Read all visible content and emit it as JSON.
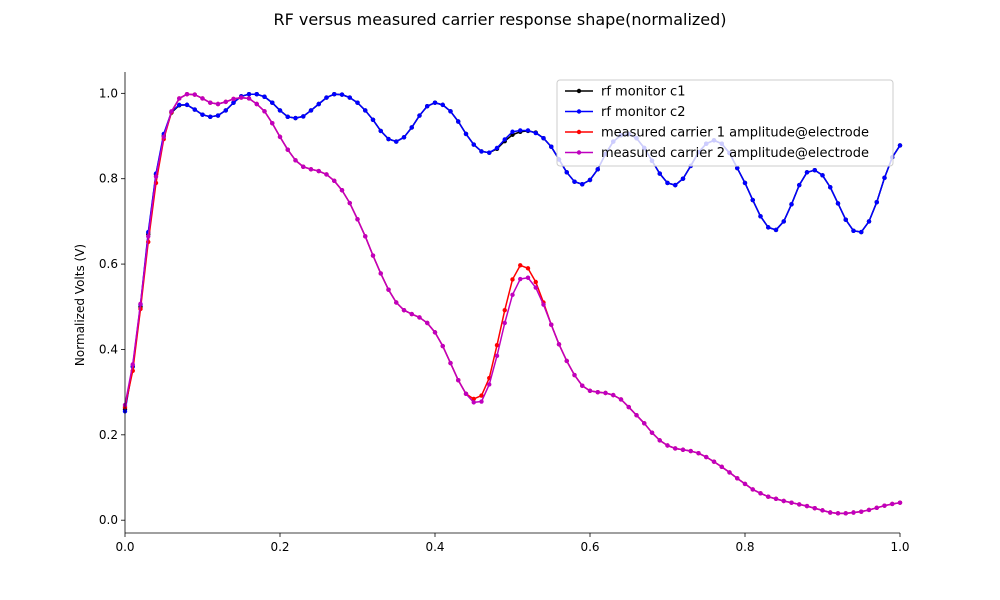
{
  "chart_data": {
    "type": "line",
    "title": "RF versus measured carrier response shape(normalized)",
    "xlabel": "",
    "ylabel": "Normalized Volts (V)",
    "xlim": [
      0,
      1
    ],
    "ylim": [
      -0.03,
      1.05
    ],
    "xticks": [
      0.0,
      0.2,
      0.4,
      0.6,
      0.8,
      1.0
    ],
    "xtick_labels": [
      "0.0",
      "0.2",
      "0.4",
      "0.6",
      "0.8",
      "1.0"
    ],
    "yticks": [
      0.0,
      0.2,
      0.4,
      0.6,
      0.8,
      1.0
    ],
    "ytick_labels": [
      "0.0",
      "0.2",
      "0.4",
      "0.6",
      "0.8",
      "1.0"
    ],
    "grid": false,
    "legend_position": "top-right",
    "series": [
      {
        "name": "rf monitor c1",
        "color": "#000000",
        "x": [
          0.0,
          0.01,
          0.02,
          0.03,
          0.04,
          0.05,
          0.06,
          0.07,
          0.08,
          0.09,
          0.1,
          0.11,
          0.12,
          0.13,
          0.14,
          0.15,
          0.16,
          0.17,
          0.18,
          0.19,
          0.2,
          0.21,
          0.22,
          0.23,
          0.24,
          0.25,
          0.26,
          0.27,
          0.28,
          0.29,
          0.3,
          0.31,
          0.32,
          0.33,
          0.34,
          0.35,
          0.36,
          0.37,
          0.38,
          0.39,
          0.4,
          0.41,
          0.42,
          0.43,
          0.44,
          0.45,
          0.46,
          0.47,
          0.48,
          0.49,
          0.5,
          0.51,
          0.52,
          0.53,
          0.54,
          0.55,
          0.56,
          0.57,
          0.58,
          0.59,
          0.6,
          0.61,
          0.62,
          0.63,
          0.64,
          0.65,
          0.66,
          0.67,
          0.68,
          0.69,
          0.7,
          0.71,
          0.72,
          0.73,
          0.74,
          0.75,
          0.76,
          0.77,
          0.78,
          0.79,
          0.8,
          0.81,
          0.82,
          0.83,
          0.84,
          0.85,
          0.86,
          0.87,
          0.88,
          0.89,
          0.9,
          0.91,
          0.92,
          0.93,
          0.94,
          0.95,
          0.96,
          0.97,
          0.98,
          0.99,
          1.0
        ],
        "y": [
          0.26,
          0.36,
          0.5,
          0.67,
          0.81,
          0.9,
          0.955,
          0.972,
          0.973,
          0.962,
          0.95,
          0.945,
          0.948,
          0.96,
          0.978,
          0.993,
          0.998,
          0.998,
          0.992,
          0.978,
          0.96,
          0.945,
          0.942,
          0.946,
          0.96,
          0.975,
          0.99,
          0.998,
          0.997,
          0.99,
          0.978,
          0.96,
          0.938,
          0.912,
          0.893,
          0.887,
          0.897,
          0.92,
          0.948,
          0.97,
          0.978,
          0.973,
          0.958,
          0.934,
          0.905,
          0.88,
          0.864,
          0.861,
          0.87,
          0.888,
          0.903,
          0.91,
          0.912,
          0.908,
          0.895,
          0.875,
          0.845,
          0.815,
          0.793,
          0.787,
          0.797,
          0.822,
          0.858,
          0.887,
          0.902,
          0.905,
          0.895,
          0.872,
          0.842,
          0.812,
          0.79,
          0.785,
          0.8,
          0.83,
          0.862,
          0.882,
          0.89,
          0.882,
          0.86,
          0.825,
          0.79,
          0.75,
          0.712,
          0.686,
          0.68,
          0.7,
          0.74,
          0.785,
          0.815,
          0.82,
          0.808,
          0.78,
          0.742,
          0.704,
          0.678,
          0.675,
          0.7,
          0.745,
          0.802,
          0.85,
          0.878
        ]
      },
      {
        "name": "rf monitor c2",
        "color": "#0000ff",
        "x": [
          0.0,
          0.01,
          0.02,
          0.03,
          0.04,
          0.05,
          0.06,
          0.07,
          0.08,
          0.09,
          0.1,
          0.11,
          0.12,
          0.13,
          0.14,
          0.15,
          0.16,
          0.17,
          0.18,
          0.19,
          0.2,
          0.21,
          0.22,
          0.23,
          0.24,
          0.25,
          0.26,
          0.27,
          0.28,
          0.29,
          0.3,
          0.31,
          0.32,
          0.33,
          0.34,
          0.35,
          0.36,
          0.37,
          0.38,
          0.39,
          0.4,
          0.41,
          0.42,
          0.43,
          0.44,
          0.45,
          0.46,
          0.47,
          0.48,
          0.49,
          0.5,
          0.51,
          0.52,
          0.53,
          0.54,
          0.55,
          0.56,
          0.57,
          0.58,
          0.59,
          0.6,
          0.61,
          0.62,
          0.63,
          0.64,
          0.65,
          0.66,
          0.67,
          0.68,
          0.69,
          0.7,
          0.71,
          0.72,
          0.73,
          0.74,
          0.75,
          0.76,
          0.77,
          0.78,
          0.79,
          0.8,
          0.81,
          0.82,
          0.83,
          0.84,
          0.85,
          0.86,
          0.87,
          0.88,
          0.89,
          0.9,
          0.91,
          0.92,
          0.93,
          0.94,
          0.95,
          0.96,
          0.97,
          0.98,
          0.99,
          1.0
        ],
        "y": [
          0.255,
          0.36,
          0.505,
          0.675,
          0.812,
          0.905,
          0.957,
          0.973,
          0.973,
          0.962,
          0.95,
          0.945,
          0.948,
          0.96,
          0.978,
          0.993,
          0.998,
          0.998,
          0.992,
          0.978,
          0.96,
          0.945,
          0.942,
          0.946,
          0.96,
          0.975,
          0.99,
          0.998,
          0.997,
          0.99,
          0.978,
          0.96,
          0.938,
          0.912,
          0.893,
          0.887,
          0.897,
          0.92,
          0.948,
          0.97,
          0.978,
          0.973,
          0.958,
          0.934,
          0.905,
          0.88,
          0.864,
          0.861,
          0.872,
          0.892,
          0.91,
          0.913,
          0.913,
          0.907,
          0.895,
          0.875,
          0.845,
          0.815,
          0.793,
          0.787,
          0.797,
          0.822,
          0.858,
          0.887,
          0.902,
          0.905,
          0.895,
          0.872,
          0.842,
          0.812,
          0.79,
          0.785,
          0.8,
          0.83,
          0.862,
          0.882,
          0.89,
          0.882,
          0.86,
          0.825,
          0.79,
          0.75,
          0.712,
          0.686,
          0.68,
          0.7,
          0.74,
          0.785,
          0.815,
          0.82,
          0.808,
          0.78,
          0.742,
          0.704,
          0.678,
          0.675,
          0.7,
          0.745,
          0.802,
          0.85,
          0.878
        ]
      },
      {
        "name": "measured carrier 1 amplitude@electrode",
        "color": "#ff0000",
        "x": [
          0.0,
          0.01,
          0.02,
          0.03,
          0.04,
          0.05,
          0.06,
          0.07,
          0.08,
          0.09,
          0.1,
          0.11,
          0.12,
          0.13,
          0.14,
          0.15,
          0.16,
          0.17,
          0.18,
          0.19,
          0.2,
          0.21,
          0.22,
          0.23,
          0.24,
          0.25,
          0.26,
          0.27,
          0.28,
          0.29,
          0.3,
          0.31,
          0.32,
          0.33,
          0.34,
          0.35,
          0.36,
          0.37,
          0.38,
          0.39,
          0.4,
          0.41,
          0.42,
          0.43,
          0.44,
          0.45,
          0.46,
          0.47,
          0.48,
          0.49,
          0.5,
          0.51,
          0.52,
          0.53,
          0.54,
          0.55,
          0.56,
          0.57,
          0.58,
          0.59,
          0.6,
          0.61,
          0.62,
          0.63,
          0.64,
          0.65,
          0.66,
          0.67,
          0.68,
          0.69,
          0.7,
          0.71,
          0.72,
          0.73,
          0.74,
          0.75,
          0.76,
          0.77,
          0.78,
          0.79,
          0.8,
          0.81,
          0.82,
          0.83,
          0.84,
          0.85,
          0.86,
          0.87,
          0.88,
          0.89,
          0.9,
          0.91,
          0.92,
          0.93,
          0.94,
          0.95,
          0.96,
          0.97,
          0.98,
          0.99,
          1.0
        ],
        "y": [
          0.265,
          0.35,
          0.495,
          0.652,
          0.79,
          0.893,
          0.956,
          0.988,
          0.998,
          0.997,
          0.988,
          0.978,
          0.975,
          0.98,
          0.987,
          0.99,
          0.988,
          0.975,
          0.958,
          0.93,
          0.898,
          0.868,
          0.843,
          0.828,
          0.822,
          0.818,
          0.81,
          0.795,
          0.773,
          0.743,
          0.705,
          0.665,
          0.62,
          0.578,
          0.54,
          0.51,
          0.492,
          0.483,
          0.475,
          0.462,
          0.44,
          0.408,
          0.368,
          0.328,
          0.296,
          0.284,
          0.292,
          0.333,
          0.41,
          0.492,
          0.564,
          0.597,
          0.59,
          0.558,
          0.51,
          0.458,
          0.412,
          0.373,
          0.34,
          0.315,
          0.303,
          0.3,
          0.298,
          0.293,
          0.283,
          0.265,
          0.246,
          0.227,
          0.205,
          0.187,
          0.175,
          0.168,
          0.165,
          0.162,
          0.157,
          0.148,
          0.137,
          0.125,
          0.112,
          0.098,
          0.085,
          0.072,
          0.063,
          0.055,
          0.05,
          0.045,
          0.041,
          0.037,
          0.033,
          0.028,
          0.023,
          0.018,
          0.016,
          0.016,
          0.018,
          0.02,
          0.024,
          0.029,
          0.034,
          0.038,
          0.041
        ]
      },
      {
        "name": "measured carrier 2 amplitude@electrode",
        "color": "#bf00bf",
        "x": [
          0.0,
          0.01,
          0.02,
          0.03,
          0.04,
          0.05,
          0.06,
          0.07,
          0.08,
          0.09,
          0.1,
          0.11,
          0.12,
          0.13,
          0.14,
          0.15,
          0.16,
          0.17,
          0.18,
          0.19,
          0.2,
          0.21,
          0.22,
          0.23,
          0.24,
          0.25,
          0.26,
          0.27,
          0.28,
          0.29,
          0.3,
          0.31,
          0.32,
          0.33,
          0.34,
          0.35,
          0.36,
          0.37,
          0.38,
          0.39,
          0.4,
          0.41,
          0.42,
          0.43,
          0.44,
          0.45,
          0.46,
          0.47,
          0.48,
          0.49,
          0.5,
          0.51,
          0.52,
          0.53,
          0.54,
          0.55,
          0.56,
          0.57,
          0.58,
          0.59,
          0.6,
          0.61,
          0.62,
          0.63,
          0.64,
          0.65,
          0.66,
          0.67,
          0.68,
          0.69,
          0.7,
          0.71,
          0.72,
          0.73,
          0.74,
          0.75,
          0.76,
          0.77,
          0.78,
          0.79,
          0.8,
          0.81,
          0.82,
          0.83,
          0.84,
          0.85,
          0.86,
          0.87,
          0.88,
          0.89,
          0.9,
          0.91,
          0.92,
          0.93,
          0.94,
          0.95,
          0.96,
          0.97,
          0.98,
          0.99,
          1.0
        ],
        "y": [
          0.27,
          0.365,
          0.507,
          0.665,
          0.805,
          0.898,
          0.958,
          0.988,
          0.998,
          0.997,
          0.988,
          0.978,
          0.975,
          0.98,
          0.987,
          0.99,
          0.988,
          0.975,
          0.958,
          0.93,
          0.898,
          0.868,
          0.843,
          0.828,
          0.822,
          0.818,
          0.81,
          0.795,
          0.773,
          0.743,
          0.705,
          0.665,
          0.62,
          0.578,
          0.54,
          0.51,
          0.492,
          0.483,
          0.475,
          0.462,
          0.44,
          0.408,
          0.368,
          0.328,
          0.296,
          0.276,
          0.278,
          0.318,
          0.385,
          0.462,
          0.528,
          0.565,
          0.568,
          0.545,
          0.505,
          0.458,
          0.412,
          0.373,
          0.34,
          0.315,
          0.303,
          0.3,
          0.298,
          0.293,
          0.283,
          0.265,
          0.246,
          0.227,
          0.205,
          0.187,
          0.175,
          0.168,
          0.165,
          0.162,
          0.157,
          0.148,
          0.137,
          0.125,
          0.112,
          0.098,
          0.085,
          0.072,
          0.063,
          0.055,
          0.05,
          0.045,
          0.041,
          0.037,
          0.033,
          0.028,
          0.023,
          0.018,
          0.016,
          0.016,
          0.018,
          0.02,
          0.024,
          0.029,
          0.034,
          0.038,
          0.041
        ]
      }
    ]
  }
}
